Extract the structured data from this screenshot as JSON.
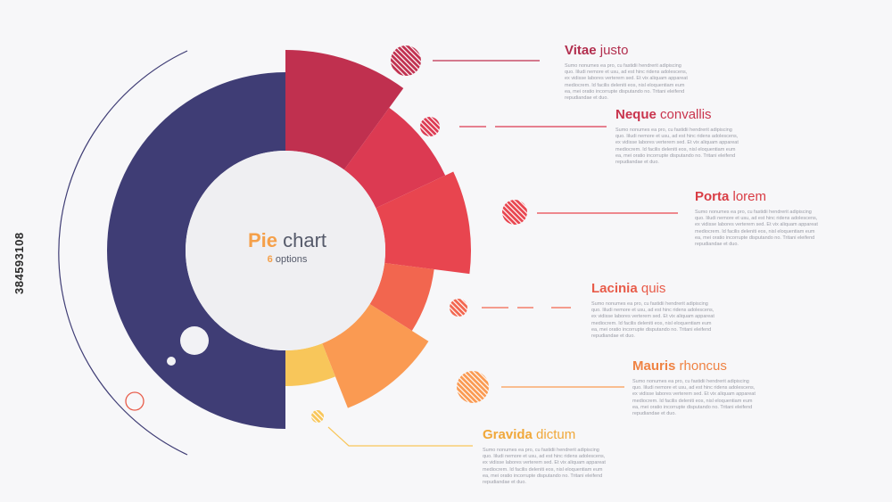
{
  "chart_data": {
    "type": "pie",
    "title_bold": "Pie",
    "title_rest": " chart",
    "subtitle_bold": "6",
    "subtitle_rest": " options",
    "big_slice": {
      "value": 50,
      "color": "#3f3d75"
    },
    "slices": [
      {
        "name_bold": "Vitae",
        "name_rest": " justo",
        "color": "#c0304f",
        "title_color": "#b22e4e",
        "value": 10
      },
      {
        "name_bold": "Neque",
        "name_rest": " convallis",
        "color": "#dc3a52",
        "title_color": "#c9344d",
        "value": 8
      },
      {
        "name_bold": "Porta",
        "name_rest": " lorem",
        "color": "#e8454f",
        "title_color": "#d93d45",
        "value": 9
      },
      {
        "name_bold": "Lacinia",
        "name_rest": " quis",
        "color": "#f2664f",
        "title_color": "#e85c4a",
        "value": 7
      },
      {
        "name_bold": "Mauris",
        "name_rest": " rhoncus",
        "color": "#fa9a52",
        "title_color": "#ef8344",
        "value": 10
      },
      {
        "name_bold": "Gravida",
        "name_rest": " dictum",
        "color": "#f8c65a",
        "title_color": "#f0a83a",
        "value": 6
      }
    ]
  },
  "description_text": "Sumo nonumes ea pro, cu fastidii hendrerit adipiscing quo. Iiludi nemore et usu, ad est hinc ridens adolescens, ex vidisse labores verterem sed. Et vix aliquam appareat mediocrem. Id facilis deleniti eos, nisl eloquentiam eum ea, mei oratio incorrupte disputando no. Tritani eleifend repudiandae et duo.",
  "watermark": "384593108"
}
